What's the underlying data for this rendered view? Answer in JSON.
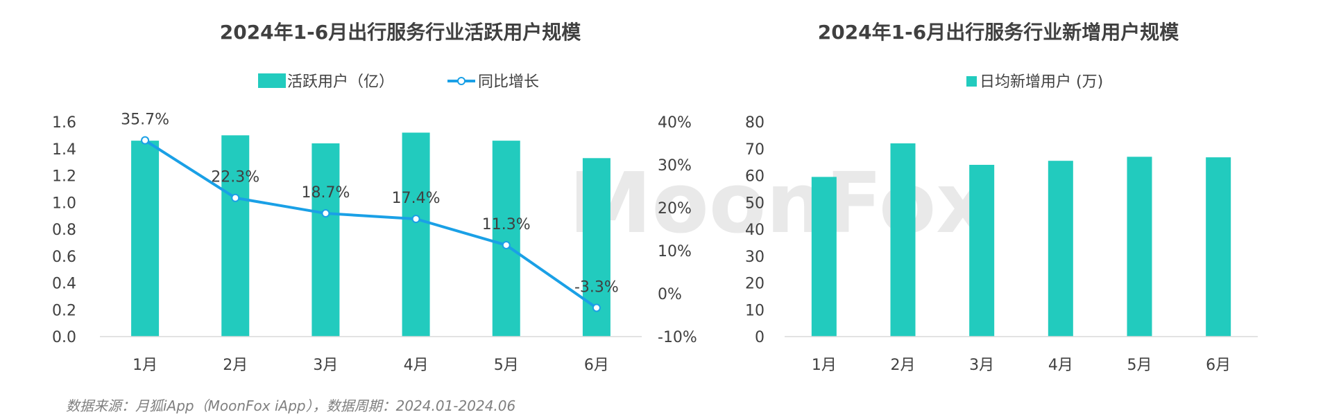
{
  "watermark": "MoonFox",
  "footer": "数据来源：月狐iApp（MoonFox iApp），数据周期：2024.01-2024.06",
  "colors": {
    "bar": "#22CBBE",
    "line": "#1AA0E6",
    "axis": "#D9D9D9",
    "text": "#404040"
  },
  "chart_data": [
    {
      "type": "bar",
      "title": "2024年1-6月出行服务行业活跃用户规模",
      "categories": [
        "1月",
        "2月",
        "3月",
        "4月",
        "5月",
        "6月"
      ],
      "series": [
        {
          "name": "活跃用户（亿）",
          "type": "bar",
          "axis": "left",
          "values": [
            1.46,
            1.5,
            1.44,
            1.52,
            1.46,
            1.33
          ]
        },
        {
          "name": "同比增长",
          "type": "line",
          "axis": "right",
          "values": [
            35.7,
            22.3,
            18.7,
            17.4,
            11.3,
            -3.3
          ],
          "labels": [
            "35.7%",
            "22.3%",
            "18.7%",
            "17.4%",
            "11.3%",
            "-3.3%"
          ]
        }
      ],
      "ylim": [
        0,
        1.6
      ],
      "yticks": [
        "0.0",
        "0.2",
        "0.4",
        "0.6",
        "0.8",
        "1.0",
        "1.2",
        "1.4",
        "1.6"
      ],
      "y2lim": [
        -10,
        40
      ],
      "y2ticks": [
        "-10%",
        "0%",
        "10%",
        "20%",
        "30%",
        "40%"
      ],
      "legend_position": "top"
    },
    {
      "type": "bar",
      "title": "2024年1-6月出行服务行业新增用户规模",
      "categories": [
        "1月",
        "2月",
        "3月",
        "4月",
        "5月",
        "6月"
      ],
      "series": [
        {
          "name": "日均新增用户 (万)",
          "values": [
            59.5,
            72,
            64,
            65.5,
            67,
            66.8
          ]
        }
      ],
      "ylim": [
        0,
        80
      ],
      "yticks": [
        "0",
        "10",
        "20",
        "30",
        "40",
        "50",
        "60",
        "70",
        "80"
      ],
      "legend_position": "top"
    }
  ]
}
